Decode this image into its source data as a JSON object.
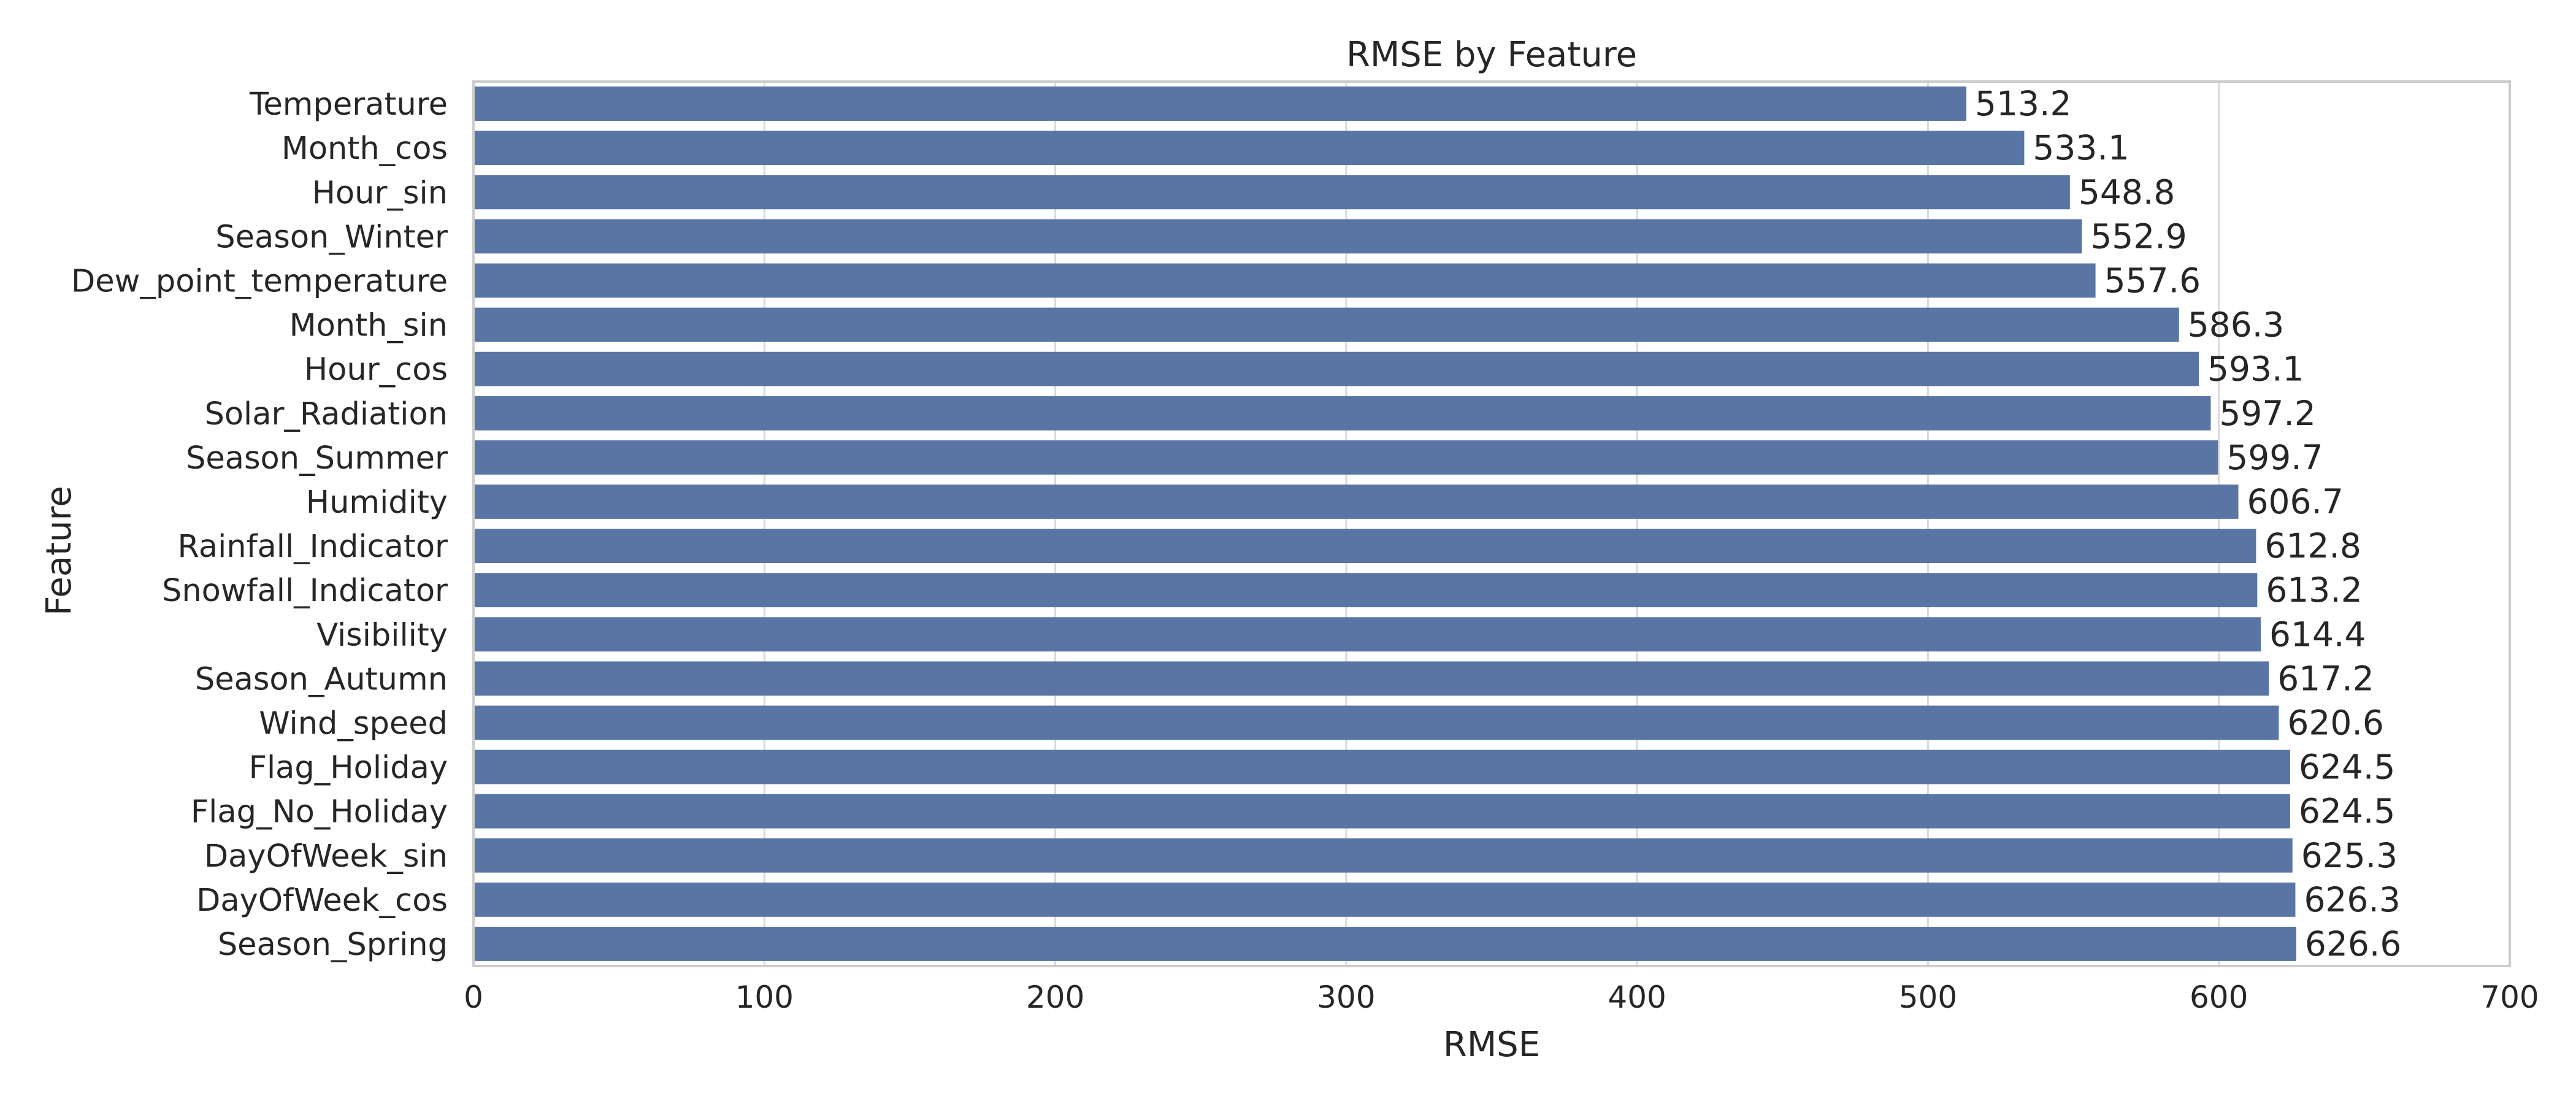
{
  "chart_data": {
    "type": "bar",
    "orientation": "horizontal",
    "title": "RMSE by Feature",
    "xlabel": "RMSE",
    "ylabel": "Feature",
    "xlim": [
      0,
      700
    ],
    "xticks": [
      0,
      100,
      200,
      300,
      400,
      500,
      600,
      700
    ],
    "grid": true,
    "bar_color": "#5875a4",
    "categories": [
      "Temperature",
      "Month_cos",
      "Hour_sin",
      "Season_Winter",
      "Dew_point_temperature",
      "Month_sin",
      "Hour_cos",
      "Solar_Radiation",
      "Season_Summer",
      "Humidity",
      "Rainfall_Indicator",
      "Snowfall_Indicator",
      "Visibility",
      "Season_Autumn",
      "Wind_speed",
      "Flag_Holiday",
      "Flag_No_Holiday",
      "DayOfWeek_sin",
      "DayOfWeek_cos",
      "Season_Spring"
    ],
    "values": [
      513.2,
      533.1,
      548.8,
      552.9,
      557.6,
      586.3,
      593.1,
      597.2,
      599.7,
      606.7,
      612.8,
      613.2,
      614.4,
      617.2,
      620.6,
      624.5,
      624.5,
      625.3,
      626.3,
      626.6
    ],
    "data_labels": [
      "513.2",
      "533.1",
      "548.8",
      "552.9",
      "557.6",
      "586.3",
      "593.1",
      "597.2",
      "599.7",
      "606.7",
      "612.8",
      "613.2",
      "614.4",
      "617.2",
      "620.6",
      "624.5",
      "624.5",
      "625.3",
      "626.3",
      "626.6"
    ]
  }
}
